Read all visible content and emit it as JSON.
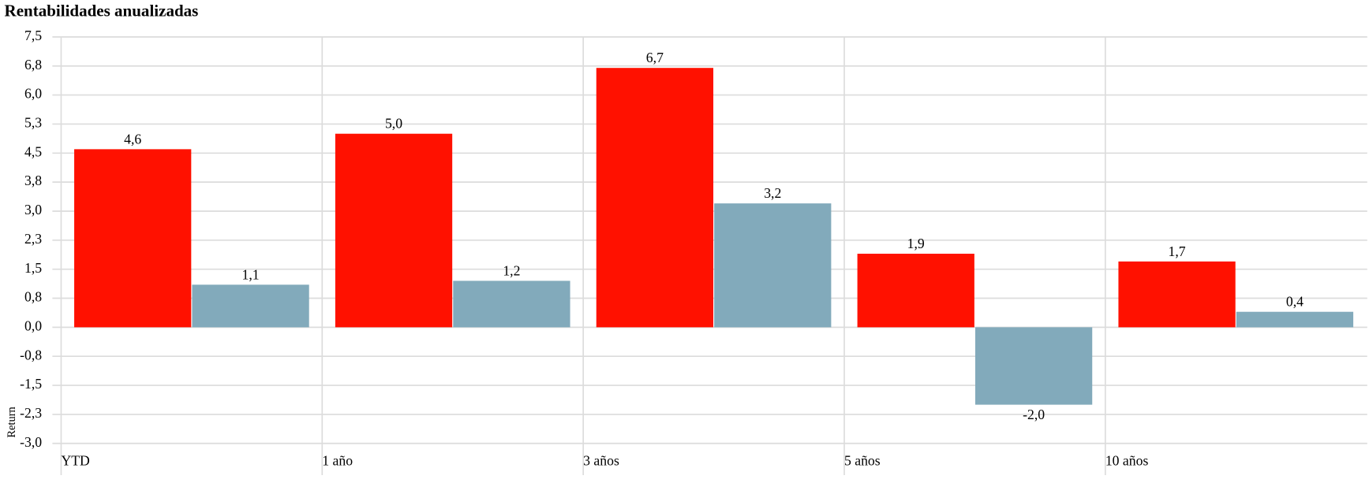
{
  "chart_data": {
    "type": "bar",
    "title": "Rentabilidades anualizadas",
    "y_label": "Return",
    "categories": [
      "YTD",
      "1 año",
      "3 años",
      "5 años",
      "10 años"
    ],
    "series": [
      {
        "color": "#ff1100",
        "values": [
          4.6,
          5.0,
          6.7,
          1.9,
          1.7
        ],
        "value_labels": [
          "4,6",
          "5,0",
          "6,7",
          "1,9",
          "1,7"
        ]
      },
      {
        "color": "#82aabb",
        "values": [
          1.1,
          1.2,
          3.2,
          -2.0,
          0.4
        ],
        "value_labels": [
          "1,1",
          "1,2",
          "3,2",
          "-2,0",
          "0,4"
        ]
      }
    ],
    "ylim": [
      -3,
      7.5
    ],
    "yticks": [
      {
        "value": 7.5,
        "label": "7,5"
      },
      {
        "value": 6.75,
        "label": "6,8"
      },
      {
        "value": 6,
        "label": "6,0"
      },
      {
        "value": 5.25,
        "label": "5,3"
      },
      {
        "value": 4.5,
        "label": "4,5"
      },
      {
        "value": 3.75,
        "label": "3,8"
      },
      {
        "value": 3,
        "label": "3,0"
      },
      {
        "value": 2.25,
        "label": "2,3"
      },
      {
        "value": 1.5,
        "label": "1,5"
      },
      {
        "value": 0.75,
        "label": "0,8"
      },
      {
        "value": 0,
        "label": "0,0"
      },
      {
        "value": -0.75,
        "label": "-0,8"
      },
      {
        "value": -1.5,
        "label": "-1,5"
      },
      {
        "value": -2.25,
        "label": "-2,3"
      },
      {
        "value": -3,
        "label": "-3,0"
      }
    ],
    "grid": true
  }
}
